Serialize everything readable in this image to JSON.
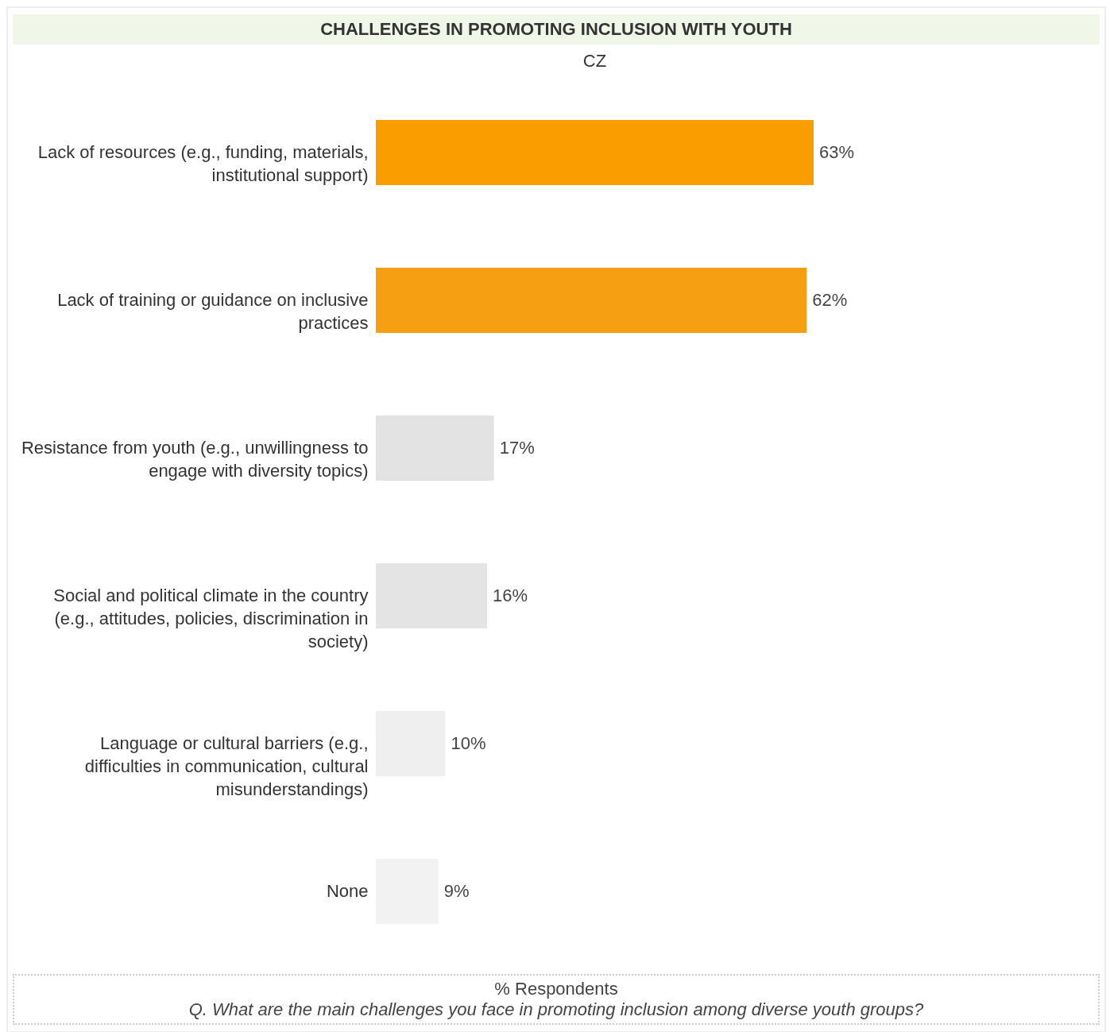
{
  "chart_data": {
    "type": "bar",
    "orientation": "horizontal",
    "title": "CHALLENGES IN PROMOTING INCLUSION WITH YOUTH",
    "subtitle": "CZ",
    "categories": [
      "Lack of resources (e.g., funding, materials, institutional support)",
      "Lack of training or guidance on inclusive practices",
      "Resistance from youth (e.g., unwillingness to engage with diversity topics)",
      "Social and political climate in the country (e.g., attitudes, policies, discrimination in society)",
      "Language or cultural barriers (e.g., difficulties in communication, cultural misunderstandings)",
      "None"
    ],
    "values": [
      63,
      62,
      17,
      16,
      10,
      9
    ],
    "value_labels": [
      "63%",
      "62%",
      "17%",
      "16%",
      "10%",
      "9%"
    ],
    "colors": [
      "#f99d00",
      "#f79f12",
      "#e3e3e3",
      "#e4e4e4",
      "#efefef",
      "#f2f2f2"
    ],
    "annotations": [
      "% Respondents",
      "Q. What are the main challenges you face in promoting inclusion among diverse youth groups?"
    ]
  }
}
